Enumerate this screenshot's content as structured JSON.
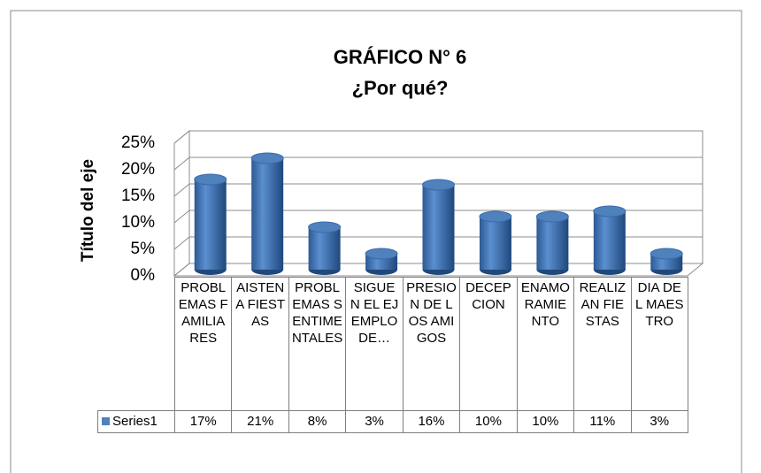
{
  "chart_data": {
    "type": "bar",
    "title": "GRÁFICO N° 6",
    "subtitle": "¿Por qué?",
    "y_label": "Título del eje",
    "categories": [
      "PROBLEMAS FAMILIARES",
      "AISTEN A FIESTAS",
      "PROBLEMAS SENTIMENTALES",
      "SIGUEN EL EJEMPLO DE…",
      "PRESION DE LOS AMIGOS",
      "DECEPCION",
      "ENAMORAMIENTO",
      "REALIZAN FIESTAS",
      "DIA DEL MAESTRO"
    ],
    "series": [
      {
        "name": "Series1",
        "color": "#4f81bd",
        "values": [
          17,
          21,
          8,
          3,
          16,
          10,
          10,
          11,
          3
        ],
        "value_labels": [
          "17%",
          "21%",
          "8%",
          "3%",
          "16%",
          "10%",
          "10%",
          "11%",
          "3%"
        ]
      }
    ],
    "ylim": [
      0,
      25
    ],
    "yticks": [
      {
        "value": 0,
        "label": "0%"
      },
      {
        "value": 5,
        "label": "5%"
      },
      {
        "value": 10,
        "label": "10%"
      },
      {
        "value": 15,
        "label": "15%"
      },
      {
        "value": 20,
        "label": "20%"
      },
      {
        "value": 25,
        "label": "25%"
      }
    ],
    "grid": true
  }
}
